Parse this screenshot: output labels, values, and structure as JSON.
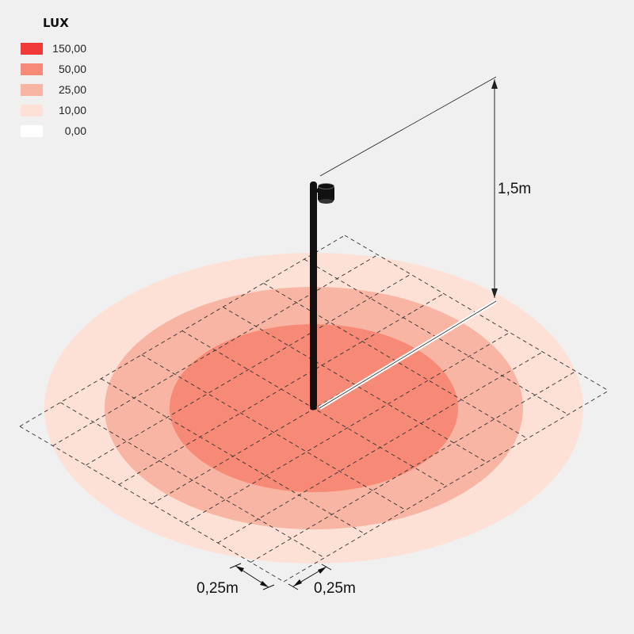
{
  "legend": {
    "title": "LUX",
    "items": [
      {
        "value": "150,00",
        "color": "#f03a3a"
      },
      {
        "value": "50,00",
        "color": "#f78a76"
      },
      {
        "value": "25,00",
        "color": "#f9b5a3"
      },
      {
        "value": "10,00",
        "color": "#fde0d6"
      },
      {
        "value": "0,00",
        "color": "#ffffff"
      }
    ]
  },
  "zones": [
    {
      "level": "10,00",
      "color": "#fde0d6"
    },
    {
      "level": "25,00",
      "color": "#f9b5a3"
    },
    {
      "level": "50,00",
      "color": "#f78a76"
    }
  ],
  "dimensions": {
    "height_label": "1,5m",
    "grid_x_label": "0,25m",
    "grid_y_label": "0,25m"
  }
}
